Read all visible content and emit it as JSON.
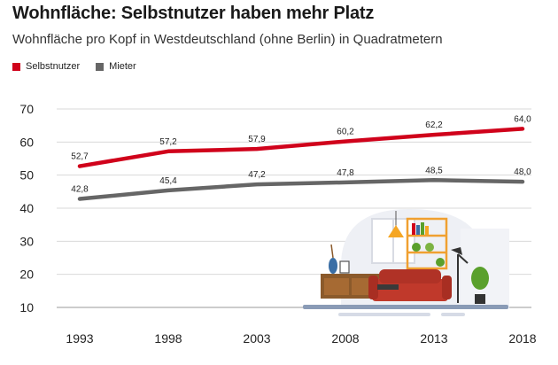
{
  "title": "Wohnfläche: Selbstnutzer haben mehr Platz",
  "subtitle": "Wohnfläche pro Kopf in Westdeutschland (ohne Berlin) in Quadratmetern",
  "chart_data": {
    "type": "line",
    "title": "Wohnfläche: Selbstnutzer haben mehr Platz",
    "subtitle": "Wohnfläche pro Kopf in Westdeutschland (ohne Berlin) in Quadratmetern",
    "x": [
      "1993",
      "1998",
      "2003",
      "2008",
      "2013",
      "2018"
    ],
    "ylim": [
      10,
      70
    ],
    "yticks": [
      "10",
      "20",
      "30",
      "40",
      "50",
      "60",
      "70"
    ],
    "grid": true,
    "legend_position": "top-left",
    "series": [
      {
        "name": "Selbstnutzer",
        "color": "#d0021b",
        "values": [
          52.7,
          57.2,
          57.9,
          60.2,
          62.2,
          64.0
        ],
        "labels": [
          "52,7",
          "57,2",
          "57,9",
          "60,2",
          "62,2",
          "64,0"
        ]
      },
      {
        "name": "Mieter",
        "color": "#666666",
        "values": [
          42.8,
          45.4,
          47.2,
          47.8,
          48.5,
          48.0
        ],
        "labels": [
          "42,8",
          "45,4",
          "47,2",
          "47,8",
          "48,5",
          "48,0"
        ]
      }
    ]
  }
}
